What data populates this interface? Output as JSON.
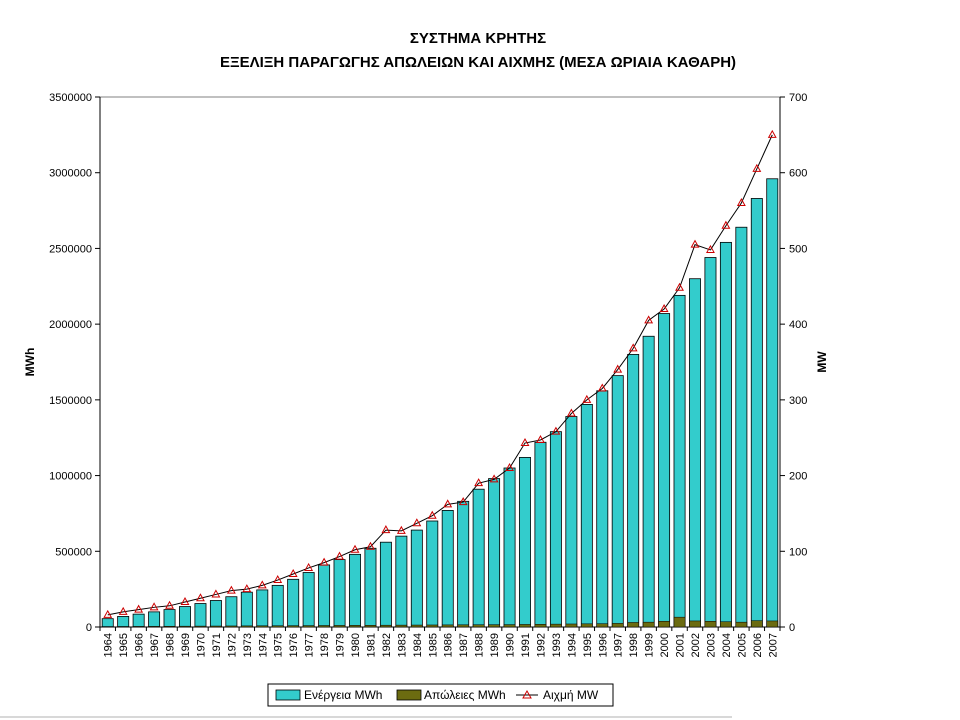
{
  "chart_data": {
    "type": "bar",
    "title": "ΣΥΣΤΗΜΑ ΚΡΗΤΗΣ",
    "subtitle": "ΕΞΕΛΙΞΗ ΠΑΡΑΓΩΓΗΣ ΑΠΩΛΕΙΩΝ ΚΑΙ ΑΙΧΜΗΣ (ΜΕΣΑ ΩΡΙΑΙΑ ΚΑΘΑΡΗ)",
    "ylabel": "MWh",
    "y2label": "MW",
    "ylim": [
      0,
      3500000
    ],
    "y2lim": [
      0,
      700
    ],
    "yticks": [
      "0",
      "500000",
      "1000000",
      "1500000",
      "2000000",
      "2500000",
      "3000000",
      "3500000"
    ],
    "y2ticks": [
      "0",
      "100",
      "200",
      "300",
      "400",
      "500",
      "600",
      "700"
    ],
    "grid": false,
    "legend_position": "bottom",
    "categories": [
      "1964",
      "1965",
      "1966",
      "1967",
      "1968",
      "1969",
      "1970",
      "1971",
      "1972",
      "1973",
      "1974",
      "1975",
      "1976",
      "1977",
      "1978",
      "1979",
      "1980",
      "1981",
      "1982",
      "1983",
      "1984",
      "1985",
      "1986",
      "1987",
      "1988",
      "1989",
      "1990",
      "1991",
      "1992",
      "1993",
      "1994",
      "1995",
      "1996",
      "1997",
      "1998",
      "1999",
      "2000",
      "2001",
      "2002",
      "2003",
      "2004",
      "2005",
      "2006",
      "2007"
    ],
    "series": [
      {
        "name": "Ενέργεια MWh",
        "type": "bar",
        "axis": "left",
        "color": "#33CCCC",
        "values": [
          55000,
          70000,
          85000,
          100000,
          115000,
          135000,
          155000,
          175000,
          200000,
          230000,
          245000,
          275000,
          315000,
          360000,
          410000,
          445000,
          480000,
          520000,
          560000,
          600000,
          640000,
          700000,
          770000,
          830000,
          910000,
          980000,
          1050000,
          1120000,
          1220000,
          1290000,
          1390000,
          1470000,
          1560000,
          1660000,
          1800000,
          1920000,
          2070000,
          2190000,
          2300000,
          2440000,
          2540000,
          2640000,
          2830000,
          2960000
        ]
      },
      {
        "name": "Απώλειες MWh",
        "type": "bar",
        "axis": "left",
        "color": "#6B6B10",
        "values": [
          3000,
          3500,
          4000,
          4500,
          5000,
          5500,
          6000,
          6500,
          7000,
          7500,
          8000,
          8500,
          9000,
          9500,
          10000,
          10500,
          11000,
          11500,
          12000,
          12500,
          13000,
          13500,
          14000,
          14500,
          15000,
          15500,
          16000,
          17000,
          18000,
          19000,
          20000,
          21000,
          22000,
          24000,
          30000,
          32000,
          38000,
          65000,
          40000,
          38000,
          35000,
          32000,
          42000,
          40000
        ]
      },
      {
        "name": "Αιχμή MW",
        "type": "line",
        "axis": "right",
        "color": "#000000",
        "marker_color": "#CC0000",
        "values": [
          16,
          20,
          23,
          26,
          28,
          33,
          38,
          43,
          48,
          50,
          55,
          62,
          70,
          78,
          85,
          93,
          102,
          106,
          128,
          127,
          137,
          147,
          162,
          165,
          190,
          195,
          210,
          243,
          247,
          258,
          282,
          300,
          315,
          340,
          368,
          405,
          420,
          448,
          505,
          498,
          530,
          560,
          605,
          650
        ]
      }
    ]
  }
}
